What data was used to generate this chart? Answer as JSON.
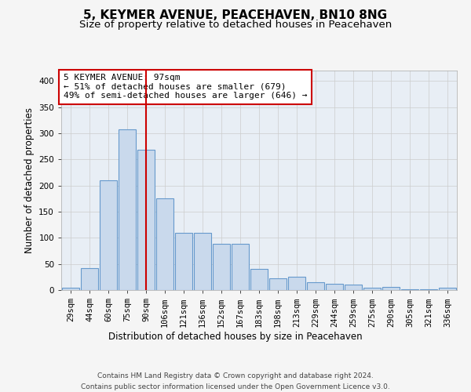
{
  "title": "5, KEYMER AVENUE, PEACEHAVEN, BN10 8NG",
  "subtitle": "Size of property relative to detached houses in Peacehaven",
  "xlabel": "Distribution of detached houses by size in Peacehaven",
  "ylabel": "Number of detached properties",
  "categories": [
    "29sqm",
    "44sqm",
    "60sqm",
    "75sqm",
    "90sqm",
    "106sqm",
    "121sqm",
    "136sqm",
    "152sqm",
    "167sqm",
    "183sqm",
    "198sqm",
    "213sqm",
    "229sqm",
    "244sqm",
    "259sqm",
    "275sqm",
    "290sqm",
    "305sqm",
    "321sqm",
    "336sqm"
  ],
  "values": [
    5,
    42,
    210,
    307,
    268,
    176,
    110,
    110,
    88,
    88,
    40,
    22,
    25,
    15,
    12,
    10,
    5,
    6,
    2,
    2,
    5
  ],
  "bar_color": "#c9d9ec",
  "bar_edge_color": "#6699cc",
  "bar_edge_width": 0.8,
  "highlight_bar_index": 4,
  "highlight_line_color": "#cc0000",
  "annotation_text": "5 KEYMER AVENUE: 97sqm\n← 51% of detached houses are smaller (679)\n49% of semi-detached houses are larger (646) →",
  "annotation_box_color": "#ffffff",
  "annotation_box_edge_color": "#cc0000",
  "ylim": [
    0,
    420
  ],
  "yticks": [
    0,
    50,
    100,
    150,
    200,
    250,
    300,
    350,
    400
  ],
  "grid_color": "#cccccc",
  "fig_bg_color": "#f5f5f5",
  "plot_bg_color": "#e8eef5",
  "footer_text": "Contains HM Land Registry data © Crown copyright and database right 2024.\nContains public sector information licensed under the Open Government Licence v3.0.",
  "title_fontsize": 11,
  "subtitle_fontsize": 9.5,
  "axis_label_fontsize": 8.5,
  "tick_fontsize": 7.5,
  "annotation_fontsize": 8,
  "footer_fontsize": 6.5
}
